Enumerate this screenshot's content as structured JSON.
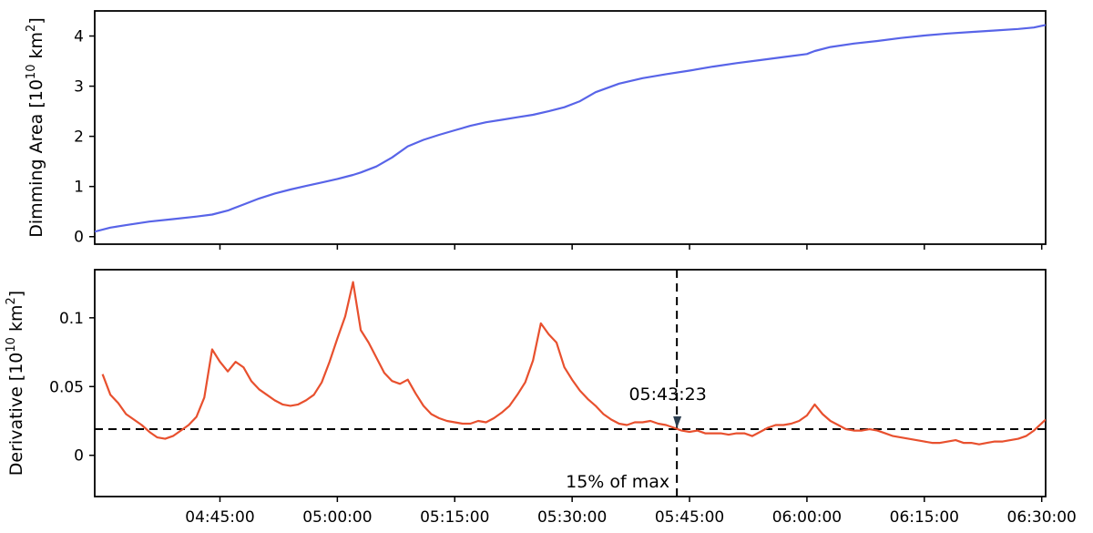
{
  "chart_data": [
    {
      "type": "line",
      "ylabel": "Dimming Area [10^10 km^2]",
      "ylabel_parts": {
        "prefix": "Dimming Area [10",
        "exp1": "10",
        "mid": " km",
        "exp2": "2",
        "suffix": "]"
      },
      "xlim": [
        "04:29:00",
        "06:30:30"
      ],
      "ylim": [
        -0.15,
        4.5
      ],
      "x_ticks": [
        "04:45:00",
        "05:00:00",
        "05:15:00",
        "05:30:00",
        "05:45:00",
        "06:00:00",
        "06:15:00",
        "06:30:00"
      ],
      "y_ticks": [
        0,
        1,
        2,
        3,
        4
      ],
      "y_tick_labels": [
        "0",
        "1",
        "2",
        "3",
        "4"
      ],
      "show_x_tick_labels": false,
      "grid": false,
      "series": [
        {
          "color": "#5864e8",
          "x": [
            "04:29:00",
            "04:31:00",
            "04:33:00",
            "04:36:00",
            "04:39:00",
            "04:42:00",
            "04:44:00",
            "04:46:00",
            "04:48:00",
            "04:50:00",
            "04:52:00",
            "04:54:00",
            "04:56:00",
            "04:58:00",
            "05:00:00",
            "05:02:00",
            "05:03:00",
            "05:05:00",
            "05:07:00",
            "05:09:00",
            "05:11:00",
            "05:13:00",
            "05:15:00",
            "05:17:00",
            "05:19:00",
            "05:21:00",
            "05:23:00",
            "05:25:00",
            "05:27:00",
            "05:29:00",
            "05:31:00",
            "05:33:00",
            "05:36:00",
            "05:39:00",
            "05:42:00",
            "05:45:00",
            "05:48:00",
            "05:51:00",
            "05:54:00",
            "05:57:00",
            "06:00:00",
            "06:01:00",
            "06:03:00",
            "06:06:00",
            "06:09:00",
            "06:12:00",
            "06:15:00",
            "06:18:00",
            "06:21:00",
            "06:24:00",
            "06:27:00",
            "06:29:00",
            "06:30:30"
          ],
          "y": [
            0.1,
            0.18,
            0.23,
            0.3,
            0.35,
            0.4,
            0.44,
            0.52,
            0.64,
            0.76,
            0.86,
            0.94,
            1.01,
            1.08,
            1.15,
            1.23,
            1.28,
            1.4,
            1.58,
            1.8,
            1.93,
            2.03,
            2.12,
            2.21,
            2.28,
            2.33,
            2.38,
            2.43,
            2.5,
            2.58,
            2.7,
            2.88,
            3.05,
            3.16,
            3.24,
            3.31,
            3.39,
            3.46,
            3.52,
            3.58,
            3.64,
            3.7,
            3.78,
            3.85,
            3.9,
            3.96,
            4.01,
            4.05,
            4.08,
            4.11,
            4.14,
            4.17,
            4.22
          ]
        }
      ]
    },
    {
      "type": "line",
      "ylabel": "Derivative [10^10 km^2]",
      "ylabel_parts": {
        "prefix": "Derivative [10",
        "exp1": "10",
        "mid": " km",
        "exp2": "2",
        "suffix": "]"
      },
      "xlim": [
        "04:29:00",
        "06:30:30"
      ],
      "ylim": [
        -0.03,
        0.135
      ],
      "x_ticks": [
        "04:45:00",
        "05:00:00",
        "05:15:00",
        "05:30:00",
        "05:45:00",
        "06:00:00",
        "06:15:00",
        "06:30:00"
      ],
      "x_tick_labels": [
        "04:45:00",
        "05:00:00",
        "05:15:00",
        "05:30:00",
        "05:45:00",
        "06:00:00",
        "06:15:00",
        "06:30:00"
      ],
      "y_ticks": [
        0,
        0.05,
        0.1
      ],
      "y_tick_labels": [
        "0",
        "0.05",
        "0.1"
      ],
      "grid": false,
      "series": [
        {
          "color": "#e8502e",
          "x": [
            "04:30:00",
            "04:31:00",
            "04:32:00",
            "04:33:00",
            "04:34:00",
            "04:35:00",
            "04:36:00",
            "04:37:00",
            "04:38:00",
            "04:39:00",
            "04:40:00",
            "04:41:00",
            "04:42:00",
            "04:43:00",
            "04:44:00",
            "04:45:00",
            "04:46:00",
            "04:47:00",
            "04:48:00",
            "04:49:00",
            "04:50:00",
            "04:51:00",
            "04:52:00",
            "04:53:00",
            "04:54:00",
            "04:55:00",
            "04:56:00",
            "04:57:00",
            "04:58:00",
            "04:59:00",
            "05:00:00",
            "05:01:00",
            "05:02:00",
            "05:03:00",
            "05:04:00",
            "05:05:00",
            "05:06:00",
            "05:07:00",
            "05:08:00",
            "05:09:00",
            "05:10:00",
            "05:11:00",
            "05:12:00",
            "05:13:00",
            "05:14:00",
            "05:15:00",
            "05:16:00",
            "05:17:00",
            "05:18:00",
            "05:19:00",
            "05:20:00",
            "05:21:00",
            "05:22:00",
            "05:23:00",
            "05:24:00",
            "05:25:00",
            "05:26:00",
            "05:27:00",
            "05:28:00",
            "05:29:00",
            "05:30:00",
            "05:31:00",
            "05:32:00",
            "05:33:00",
            "05:34:00",
            "05:35:00",
            "05:36:00",
            "05:37:00",
            "05:38:00",
            "05:39:00",
            "05:40:00",
            "05:41:00",
            "05:42:00",
            "05:43:00",
            "05:44:00",
            "05:45:00",
            "05:46:00",
            "05:47:00",
            "05:48:00",
            "05:49:00",
            "05:50:00",
            "05:51:00",
            "05:52:00",
            "05:53:00",
            "05:54:00",
            "05:55:00",
            "05:56:00",
            "05:57:00",
            "05:58:00",
            "05:59:00",
            "06:00:00",
            "06:01:00",
            "06:02:00",
            "06:03:00",
            "06:04:00",
            "06:05:00",
            "06:06:00",
            "06:07:00",
            "06:08:00",
            "06:09:00",
            "06:10:00",
            "06:11:00",
            "06:12:00",
            "06:13:00",
            "06:14:00",
            "06:15:00",
            "06:16:00",
            "06:17:00",
            "06:18:00",
            "06:19:00",
            "06:20:00",
            "06:21:00",
            "06:22:00",
            "06:23:00",
            "06:24:00",
            "06:25:00",
            "06:26:00",
            "06:27:00",
            "06:28:00",
            "06:29:00",
            "06:30:30"
          ],
          "y": [
            0.059,
            0.044,
            0.038,
            0.03,
            0.026,
            0.022,
            0.017,
            0.013,
            0.012,
            0.014,
            0.018,
            0.022,
            0.028,
            0.042,
            0.077,
            0.068,
            0.061,
            0.068,
            0.064,
            0.054,
            0.048,
            0.044,
            0.04,
            0.037,
            0.036,
            0.037,
            0.04,
            0.044,
            0.053,
            0.068,
            0.085,
            0.101,
            0.126,
            0.091,
            0.082,
            0.071,
            0.06,
            0.054,
            0.052,
            0.055,
            0.045,
            0.036,
            0.03,
            0.027,
            0.025,
            0.024,
            0.023,
            0.023,
            0.025,
            0.024,
            0.027,
            0.031,
            0.036,
            0.044,
            0.053,
            0.069,
            0.096,
            0.088,
            0.082,
            0.064,
            0.055,
            0.047,
            0.041,
            0.036,
            0.03,
            0.026,
            0.023,
            0.022,
            0.024,
            0.024,
            0.025,
            0.023,
            0.022,
            0.02,
            0.018,
            0.017,
            0.018,
            0.016,
            0.016,
            0.016,
            0.015,
            0.016,
            0.016,
            0.014,
            0.017,
            0.02,
            0.022,
            0.022,
            0.023,
            0.025,
            0.029,
            0.037,
            0.03,
            0.025,
            0.022,
            0.019,
            0.018,
            0.018,
            0.019,
            0.018,
            0.016,
            0.014,
            0.013,
            0.012,
            0.011,
            0.01,
            0.009,
            0.009,
            0.01,
            0.011,
            0.009,
            0.009,
            0.008,
            0.009,
            0.01,
            0.01,
            0.011,
            0.012,
            0.014,
            0.018,
            0.026
          ]
        }
      ],
      "threshold": {
        "y": 0.019,
        "label": "15% of max"
      },
      "vline": {
        "x": "05:43:23"
      },
      "annotation": {
        "text": "05:43:23",
        "x": "05:43:23",
        "y": 0.019
      }
    }
  ]
}
